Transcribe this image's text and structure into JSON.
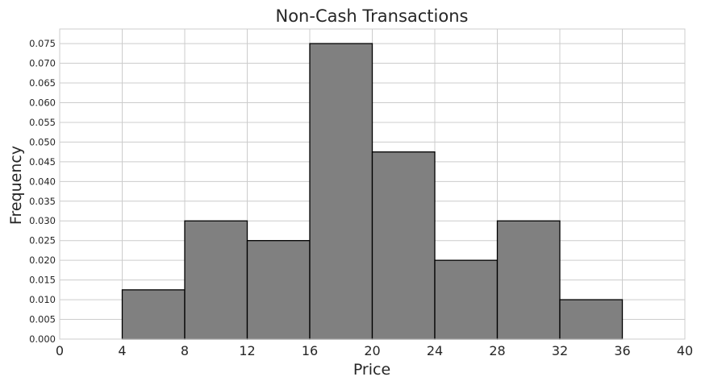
{
  "chart_data": {
    "type": "bar",
    "title": "Non-Cash Transactions",
    "xlabel": "Price",
    "ylabel": "Frequency",
    "bins": [
      {
        "start": 4,
        "end": 8,
        "value": 0.0125
      },
      {
        "start": 8,
        "end": 12,
        "value": 0.03
      },
      {
        "start": 12,
        "end": 16,
        "value": 0.025
      },
      {
        "start": 16,
        "end": 20,
        "value": 0.075
      },
      {
        "start": 20,
        "end": 24,
        "value": 0.0475
      },
      {
        "start": 24,
        "end": 28,
        "value": 0.02
      },
      {
        "start": 28,
        "end": 32,
        "value": 0.03
      },
      {
        "start": 32,
        "end": 36,
        "value": 0.01
      }
    ],
    "xlim": [
      0,
      40
    ],
    "ylim": [
      0,
      0.0787
    ],
    "xticks": [
      "0",
      "4",
      "8",
      "12",
      "16",
      "20",
      "24",
      "28",
      "32",
      "36",
      "40"
    ],
    "yticks": [
      "0.000",
      "0.005",
      "0.010",
      "0.015",
      "0.020",
      "0.025",
      "0.030",
      "0.035",
      "0.040",
      "0.045",
      "0.050",
      "0.055",
      "0.060",
      "0.065",
      "0.070",
      "0.075"
    ],
    "grid": true,
    "bar_color": "#808080",
    "edge_color": "#000000",
    "grid_color": "#cccccc"
  }
}
